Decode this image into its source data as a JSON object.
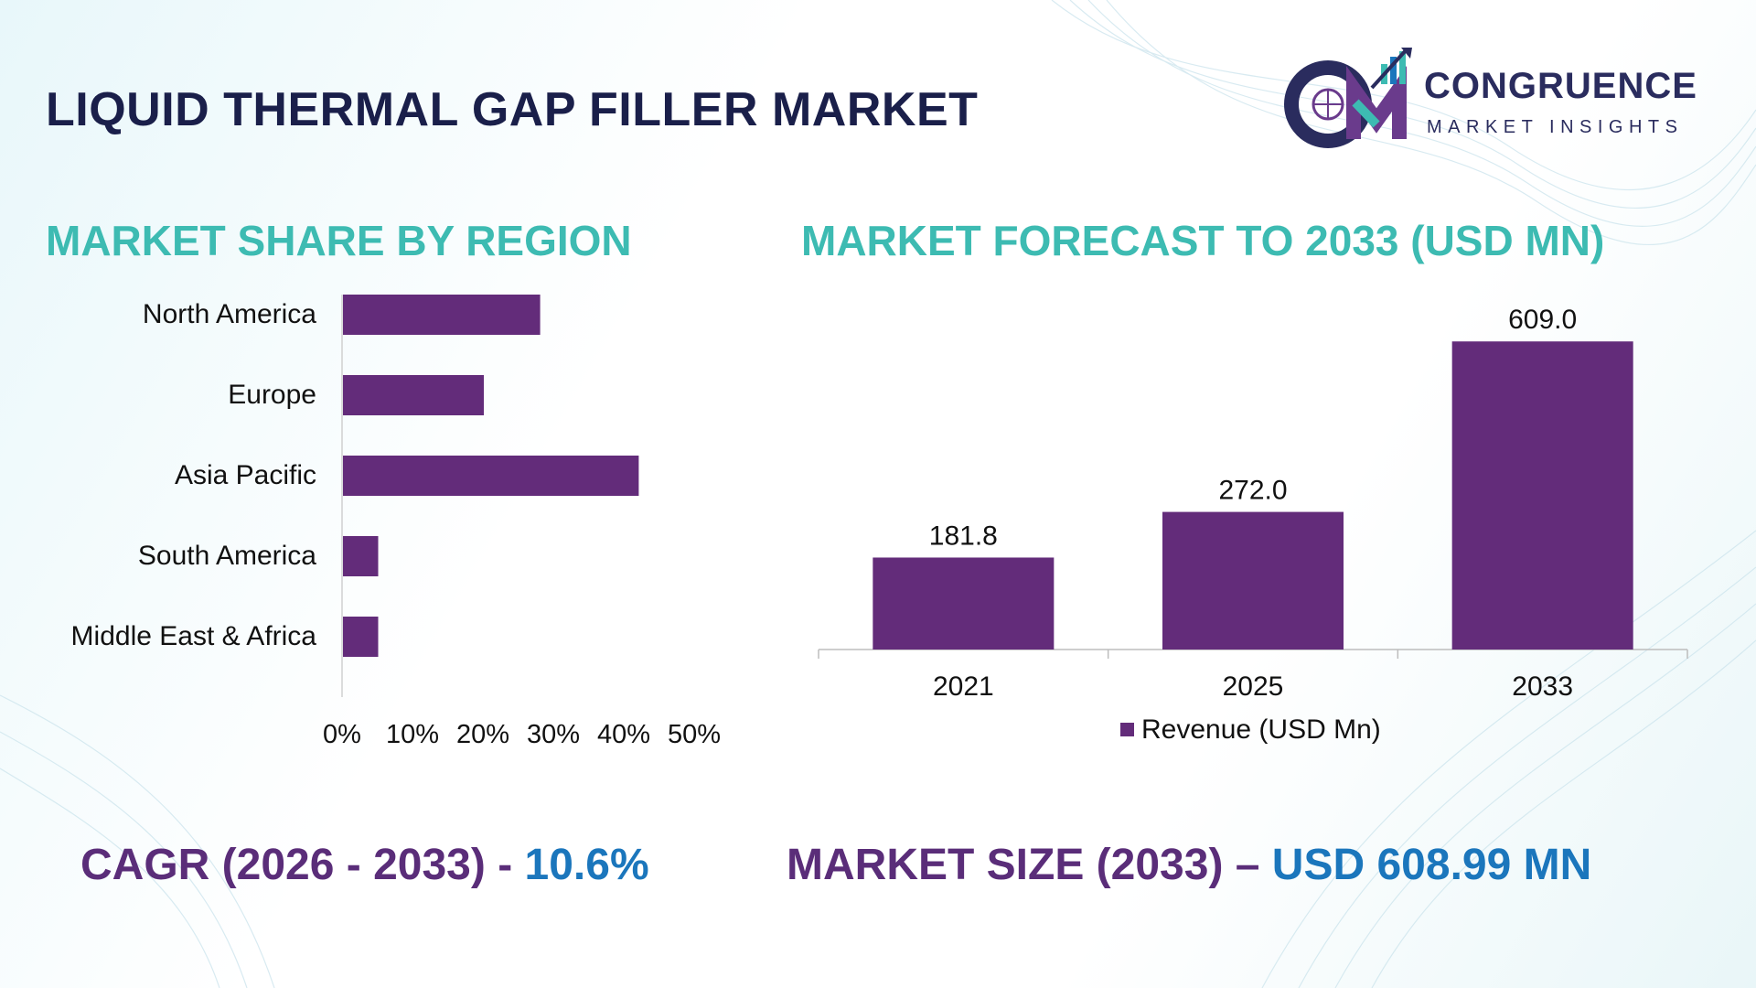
{
  "title": "LIQUID THERMAL GAP FILLER MARKET",
  "logo": {
    "name": "CONGRUENCE",
    "tagline": "MARKET INSIGHTS"
  },
  "colors": {
    "bar": "#632c7a",
    "title": "#1a1f4a",
    "section": "#3dbbb2",
    "stat_label": "#5a2d79",
    "stat_value": "#1b76bc"
  },
  "chart_data": [
    {
      "type": "bar",
      "orientation": "horizontal",
      "title": "MARKET SHARE BY REGION",
      "categories": [
        "North America",
        "Europe",
        "Asia Pacific",
        "South America",
        "Middle East & Africa"
      ],
      "values": [
        28,
        20,
        42,
        5,
        5
      ],
      "unit": "%",
      "xlim": [
        0,
        50
      ],
      "xticks": [
        "0%",
        "10%",
        "20%",
        "30%",
        "40%",
        "50%"
      ],
      "grid": false
    },
    {
      "type": "bar",
      "title": "MARKET FORECAST TO 2033 (USD MN)",
      "categories": [
        "2021",
        "2025",
        "2033"
      ],
      "series": [
        {
          "name": "Revenue (USD Mn)",
          "values": [
            181.8,
            272.0,
            609.0
          ]
        }
      ],
      "data_labels": [
        "181.8",
        "272.0",
        "609.0"
      ],
      "ylim": [
        0,
        650
      ],
      "legend": "bottom",
      "grid": false
    }
  ],
  "stats": {
    "cagr_label": "CAGR (2026 - 2033) - ",
    "cagr_value": "10.6%",
    "size_label": "MARKET SIZE (2033) – ",
    "size_value": "USD 608.99 MN"
  }
}
